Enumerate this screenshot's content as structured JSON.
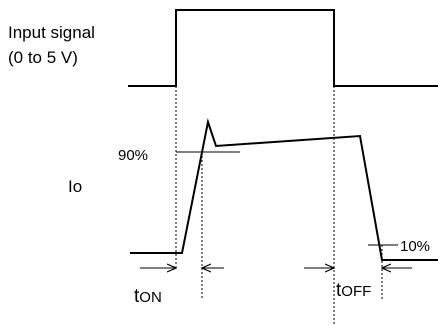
{
  "labels": {
    "input_signal_line1": "Input signal",
    "input_signal_line2": "(0 to 5 V)",
    "io": "Io",
    "pct90": "90%",
    "pct10": "10%",
    "ton_main": "t",
    "ton_sub": "ON",
    "toff_main": "t",
    "toff_sub": "OFF"
  }
}
